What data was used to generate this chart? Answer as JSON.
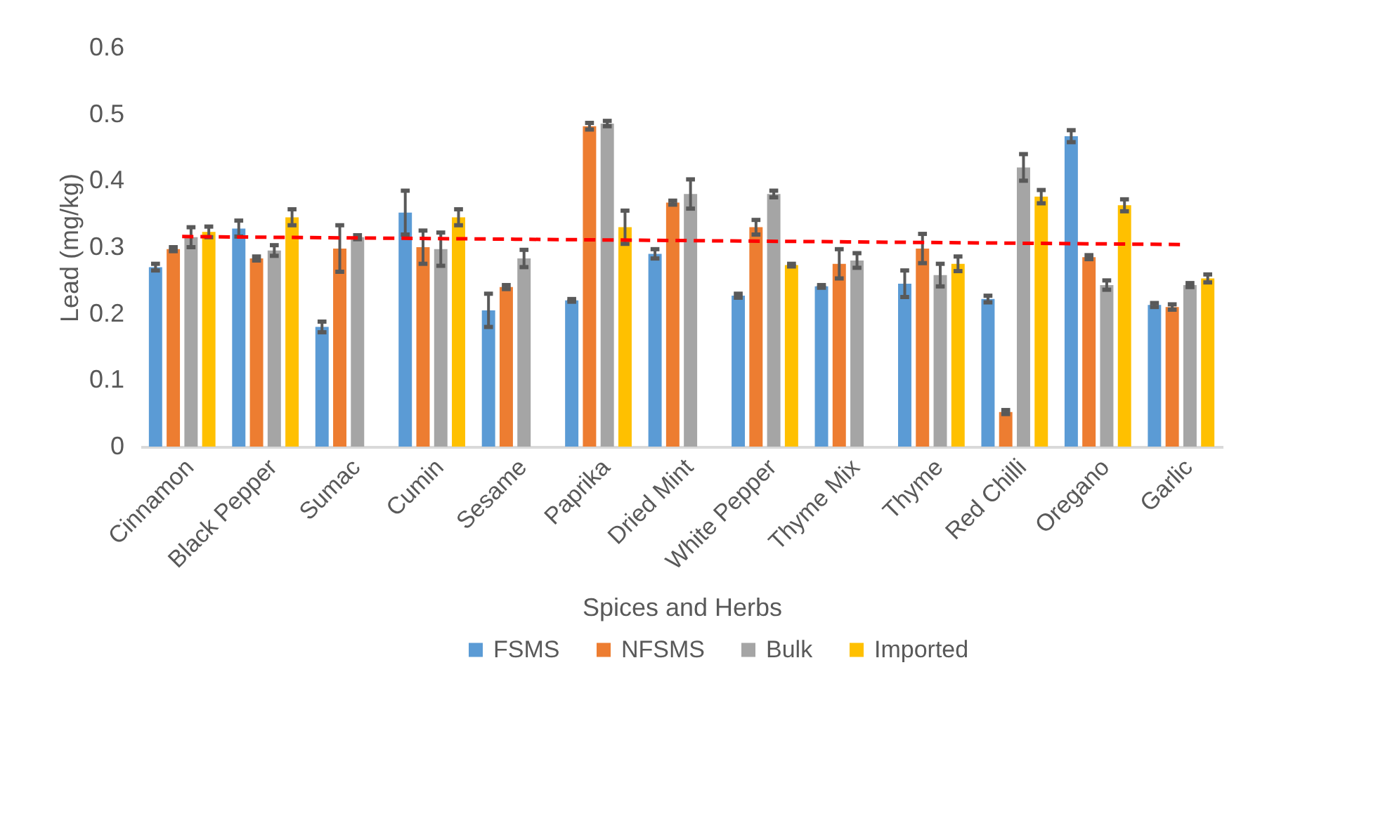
{
  "chart_data": {
    "type": "bar",
    "xlabel": "Spices and Herbs",
    "ylabel": "Lead (mg/kg)",
    "categories": [
      "Cinnamon",
      "Black Pepper",
      "Sumac",
      "Cumin",
      "Sesame",
      "Paprika",
      "Dried Mint",
      "White Pepper",
      "Thyme Mix",
      "Thyme",
      "Red Chilli",
      "Oregano",
      "Garlic"
    ],
    "series": [
      {
        "name": "FSMS",
        "color": "#5b9bd5",
        "values": [
          0.27,
          0.328,
          0.18,
          0.352,
          0.205,
          0.22,
          0.29,
          0.227,
          0.241,
          0.245,
          0.222,
          0.467,
          0.213
        ],
        "errors": [
          0.005,
          0.012,
          0.008,
          0.033,
          0.025,
          0.002,
          0.007,
          0.003,
          0.002,
          0.02,
          0.005,
          0.009,
          0.003
        ]
      },
      {
        "name": "NFSMS",
        "color": "#ed7d31",
        "values": [
          0.297,
          0.283,
          0.298,
          0.3,
          0.24,
          0.482,
          0.367,
          0.33,
          0.275,
          0.298,
          0.052,
          0.285,
          0.21
        ],
        "errors": [
          0.003,
          0.003,
          0.035,
          0.025,
          0.003,
          0.005,
          0.003,
          0.011,
          0.022,
          0.022,
          0.003,
          0.003,
          0.004
        ]
      },
      {
        "name": "Bulk",
        "color": "#a5a5a5",
        "values": [
          0.315,
          0.295,
          0.315,
          0.297,
          0.283,
          0.486,
          0.38,
          0.38,
          0.28,
          0.258,
          0.42,
          0.243,
          0.243
        ],
        "errors": [
          0.015,
          0.008,
          0.003,
          0.025,
          0.013,
          0.004,
          0.022,
          0.005,
          0.011,
          0.017,
          0.02,
          0.007,
          0.003
        ]
      },
      {
        "name": "Imported",
        "color": "#ffc000",
        "values": [
          0.323,
          0.345,
          null,
          0.345,
          null,
          0.33,
          null,
          0.273,
          null,
          0.275,
          0.376,
          0.363,
          0.253
        ],
        "errors": [
          0.008,
          0.012,
          null,
          0.012,
          null,
          0.025,
          null,
          0.002,
          null,
          0.011,
          0.01,
          0.009,
          0.006
        ]
      },
      {
        "type": "line",
        "color": "#ff0000",
        "line_style": "dashed",
        "values": [
          0.316,
          0.315,
          0.314,
          0.313,
          0.312,
          0.311,
          0.31,
          0.309,
          0.308,
          0.307,
          0.306,
          0.305,
          0.304
        ]
      }
    ],
    "ylim": [
      0,
      0.6
    ],
    "yticks": [
      0,
      0.1,
      0.2,
      0.3,
      0.4,
      0.5,
      0.6
    ],
    "legend": "bottom"
  }
}
